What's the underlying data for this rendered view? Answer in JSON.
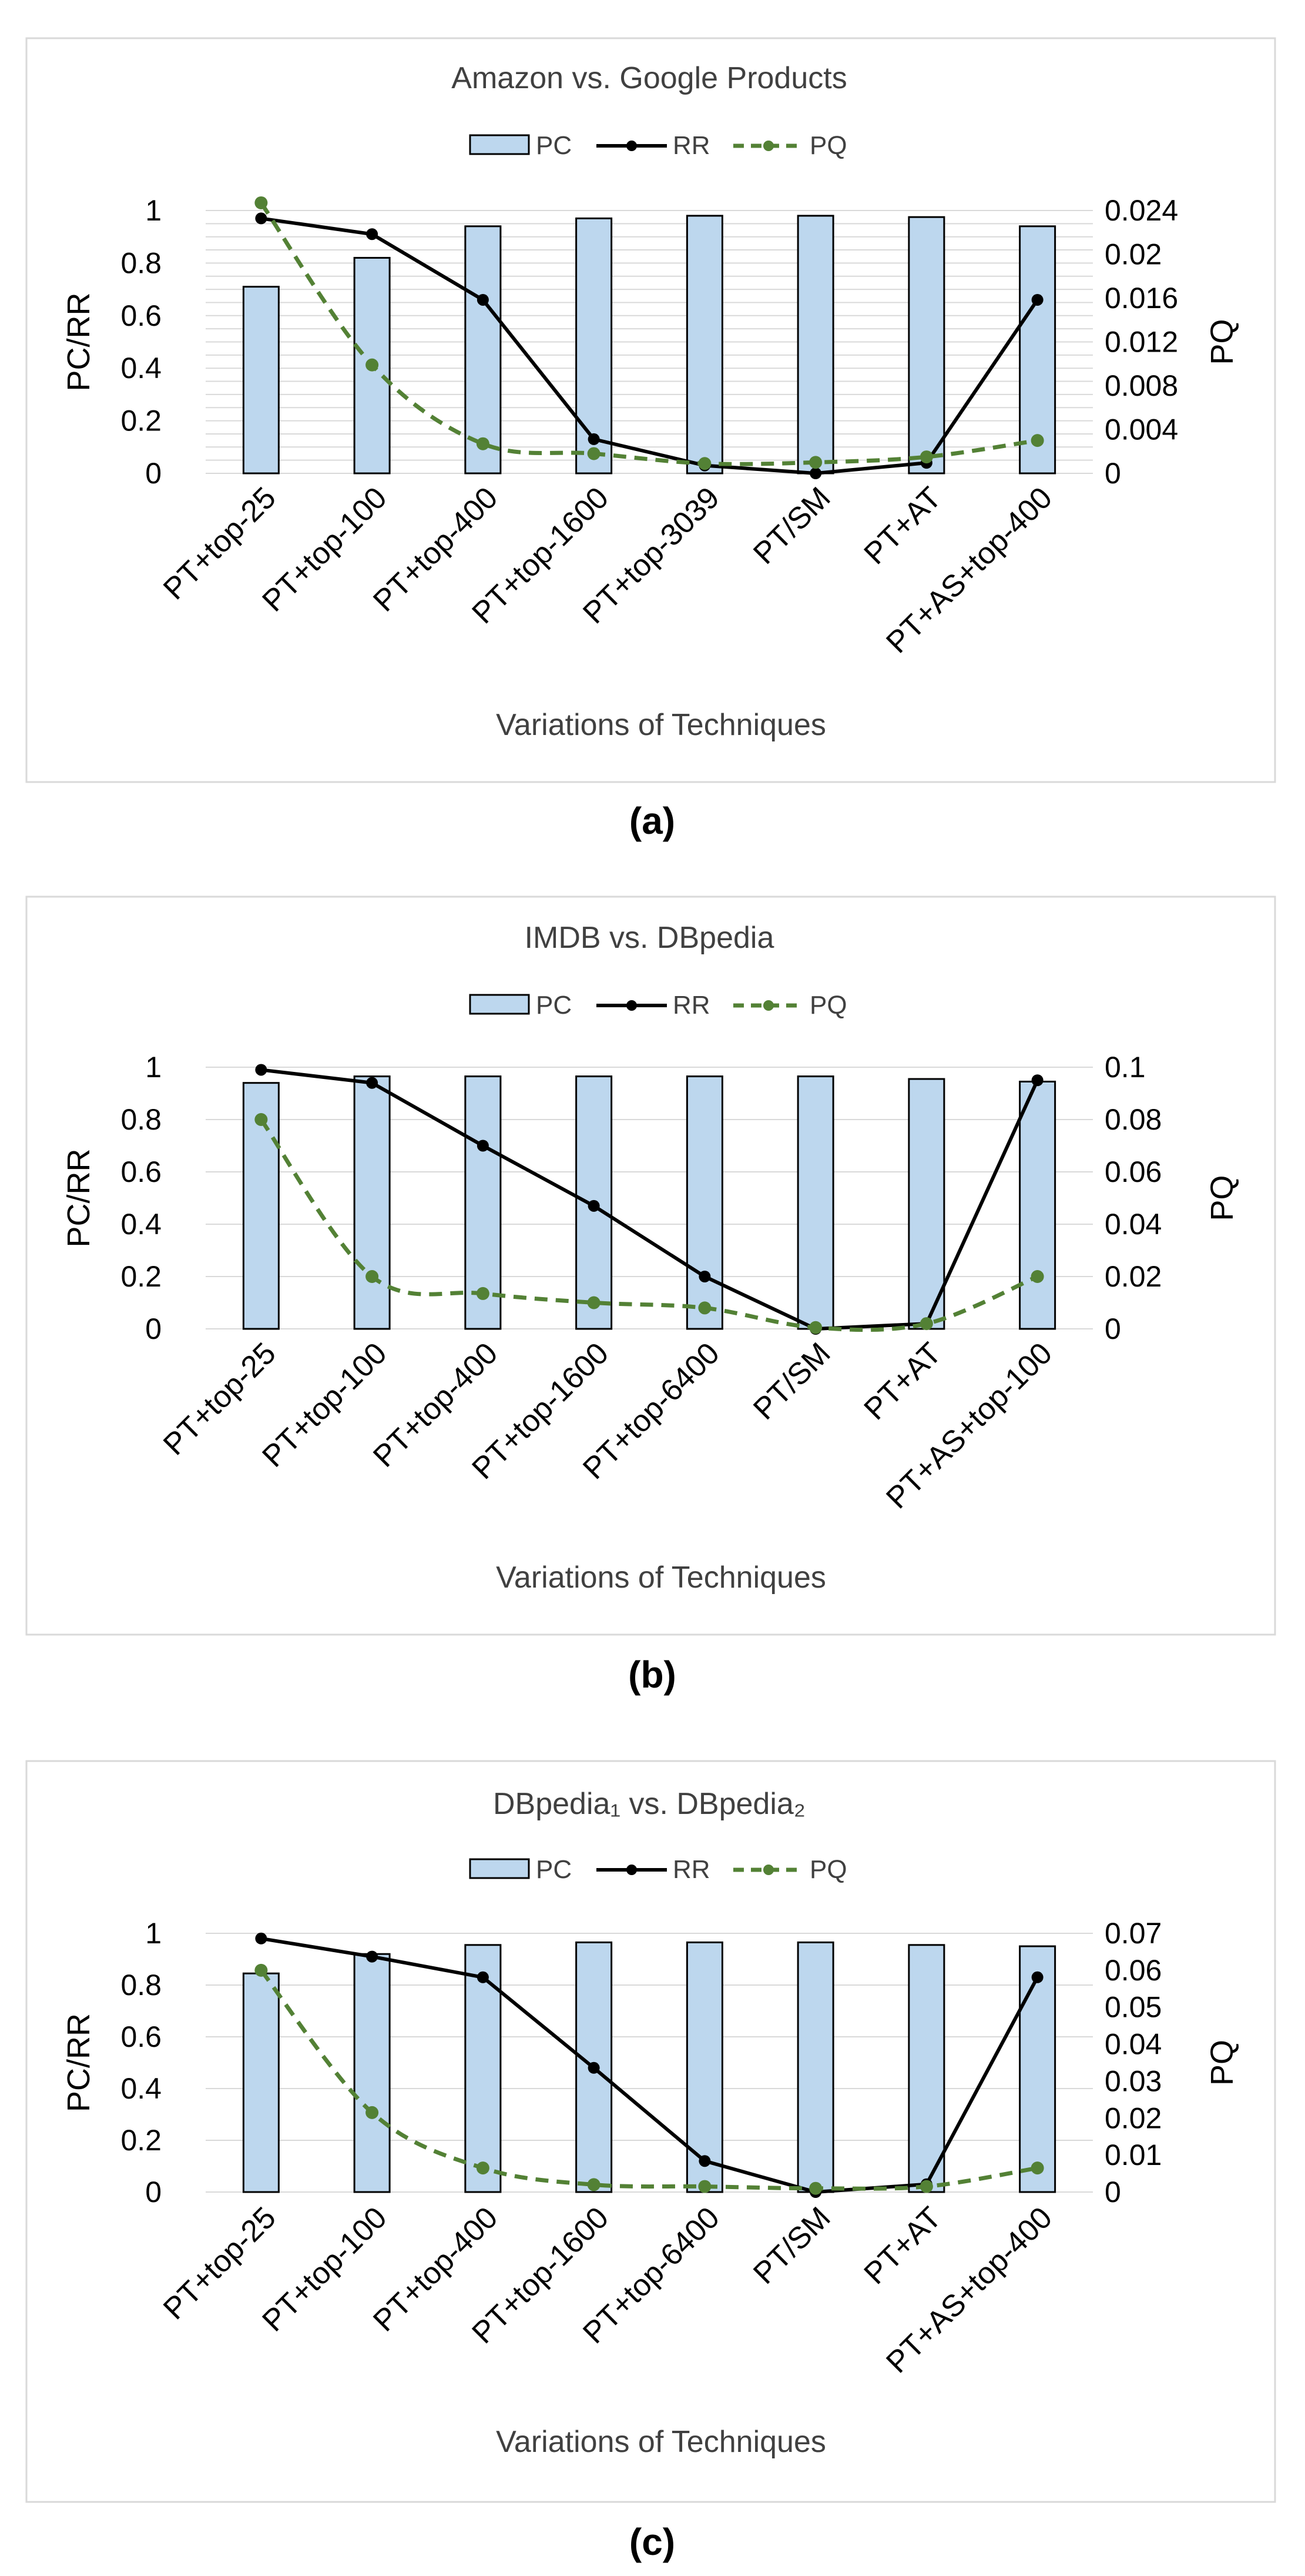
{
  "chart_data": [
    {
      "type": "bar+line",
      "title": "Amazon vs. Google Products",
      "caption": "(a)",
      "xlabel": "Variations of Techniques",
      "ylabel_left": "PC/RR",
      "ylabel_right": "PQ",
      "left_ylim": [
        0,
        1
      ],
      "left_ticks": [
        "0",
        "0.2",
        "0.4",
        "0.6",
        "0.8",
        "1"
      ],
      "right_ylim": [
        0,
        0.024
      ],
      "right_ticks": [
        "0",
        "0.004",
        "0.008",
        "0.012",
        "0.016",
        "0.02",
        "0.024"
      ],
      "legend": [
        "PC",
        "RR",
        "PQ"
      ],
      "categories": [
        "PT+top-25",
        "PT+top-100",
        "PT+top-400",
        "PT+top-1600",
        "PT+top-3039",
        "PT/SM",
        "PT+AT",
        "PT+AS+top-400"
      ],
      "series": [
        {
          "name": "PC",
          "kind": "bar",
          "axis": "left",
          "values": [
            0.71,
            0.82,
            0.94,
            0.97,
            0.98,
            0.98,
            0.975,
            0.94
          ]
        },
        {
          "name": "RR",
          "kind": "line",
          "axis": "left",
          "values": [
            0.97,
            0.91,
            0.66,
            0.13,
            0.03,
            0.0,
            0.04,
            0.66
          ]
        },
        {
          "name": "PQ",
          "kind": "dashed-line",
          "axis": "right",
          "values": [
            0.0247,
            0.0099,
            0.0027,
            0.0018,
            0.0009,
            0.001,
            0.0015,
            0.003
          ]
        }
      ]
    },
    {
      "type": "bar+line",
      "title": "IMDB vs. DBpedia",
      "caption": "(b)",
      "xlabel": "Variations of Techniques",
      "ylabel_left": "PC/RR",
      "ylabel_right": "PQ",
      "left_ylim": [
        0,
        1
      ],
      "left_ticks": [
        "0",
        "0.2",
        "0.4",
        "0.6",
        "0.8",
        "1"
      ],
      "right_ylim": [
        0,
        0.1
      ],
      "right_ticks": [
        "0",
        "0.02",
        "0.04",
        "0.06",
        "0.08",
        "0.1"
      ],
      "legend": [
        "PC",
        "RR",
        "PQ"
      ],
      "categories": [
        "PT+top-25",
        "PT+top-100",
        "PT+top-400",
        "PT+top-1600",
        "PT+top-6400",
        "PT/SM",
        "PT+AT",
        "PT+AS+top-100"
      ],
      "series": [
        {
          "name": "PC",
          "kind": "bar",
          "axis": "left",
          "values": [
            0.94,
            0.965,
            0.965,
            0.965,
            0.965,
            0.965,
            0.955,
            0.945
          ]
        },
        {
          "name": "RR",
          "kind": "line",
          "axis": "left",
          "values": [
            0.99,
            0.94,
            0.7,
            0.47,
            0.2,
            0.0,
            0.02,
            0.95
          ]
        },
        {
          "name": "PQ",
          "kind": "dashed-line",
          "axis": "right",
          "values": [
            0.08,
            0.02,
            0.0135,
            0.01,
            0.008,
            0.0005,
            0.002,
            0.02
          ]
        }
      ]
    },
    {
      "type": "bar+line",
      "title": "DBpedia₁ vs. DBpedia₂",
      "caption": "(c)",
      "xlabel": "Variations of Techniques",
      "ylabel_left": "PC/RR",
      "ylabel_right": "PQ",
      "left_ylim": [
        0,
        1
      ],
      "left_ticks": [
        "0",
        "0.2",
        "0.4",
        "0.6",
        "0.8",
        "1"
      ],
      "right_ylim": [
        0,
        0.07
      ],
      "right_ticks": [
        "0",
        "0.01",
        "0.02",
        "0.03",
        "0.04",
        "0.05",
        "0.06",
        "0.07"
      ],
      "legend": [
        "PC",
        "RR",
        "PQ"
      ],
      "categories": [
        "PT+top-25",
        "PT+top-100",
        "PT+top-400",
        "PT+top-1600",
        "PT+top-6400",
        "PT/SM",
        "PT+AT",
        "PT+AS+top-400"
      ],
      "series": [
        {
          "name": "PC",
          "kind": "bar",
          "axis": "left",
          "values": [
            0.845,
            0.92,
            0.955,
            0.965,
            0.965,
            0.965,
            0.955,
            0.95
          ]
        },
        {
          "name": "RR",
          "kind": "line",
          "axis": "left",
          "values": [
            0.98,
            0.91,
            0.83,
            0.48,
            0.12,
            0.0,
            0.03,
            0.83
          ]
        },
        {
          "name": "PQ",
          "kind": "dashed-line",
          "axis": "right",
          "values": [
            0.06,
            0.0215,
            0.0065,
            0.002,
            0.0015,
            0.001,
            0.0015,
            0.0065
          ]
        }
      ]
    }
  ],
  "colors": {
    "pc_fill": "#bdd7ee",
    "pc_stroke": "#000000",
    "rr": "#000000",
    "pq": "#538135",
    "grid": "#d9d9d9",
    "frame": "#d9d9d9"
  }
}
